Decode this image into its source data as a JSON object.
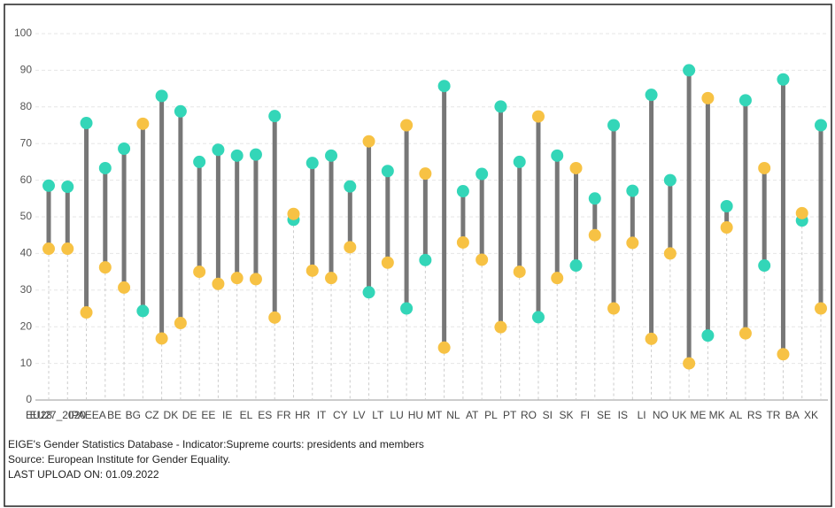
{
  "chart_data": {
    "type": "dumbbell",
    "categories": [
      "EU28",
      "EU27_2020",
      "IPA",
      "EEA",
      "BE",
      "BG",
      "CZ",
      "DK",
      "DE",
      "EE",
      "IE",
      "EL",
      "ES",
      "FR",
      "HR",
      "IT",
      "CY",
      "LV",
      "LT",
      "LU",
      "HU",
      "MT",
      "NL",
      "AT",
      "PL",
      "PT",
      "RO",
      "SI",
      "SK",
      "FI",
      "SE",
      "IS",
      "LI",
      "NO",
      "UK",
      "ME",
      "MK",
      "AL",
      "RS",
      "TR",
      "BA",
      "XK"
    ],
    "series": [
      {
        "color": "#33d6b8",
        "values": [
          58.5,
          58.2,
          75.6,
          63.3,
          68.6,
          24.3,
          83,
          78.8,
          65,
          68.3,
          66.7,
          67,
          77.5,
          49.2,
          64.7,
          66.7,
          58.3,
          29.4,
          62.5,
          25,
          38.2,
          85.7,
          57,
          61.7,
          80.1,
          65,
          22.6,
          66.7,
          36.7,
          55,
          75,
          57.1,
          83.3,
          60,
          90,
          17.6,
          52.9,
          81.8,
          36.7,
          87.5,
          49,
          75
        ]
      },
      {
        "color": "#f7c244",
        "values": [
          41.3,
          41.3,
          23.9,
          36.2,
          30.7,
          75.4,
          16.8,
          21,
          35,
          31.7,
          33.3,
          33,
          22.5,
          50.8,
          35.3,
          33.3,
          41.7,
          70.6,
          37.5,
          75,
          61.8,
          14.3,
          43,
          38.3,
          19.9,
          35,
          77.4,
          33.3,
          63.3,
          45,
          25,
          42.9,
          16.7,
          40,
          10,
          82.4,
          47.1,
          18.2,
          63.3,
          12.5,
          51,
          25
        ]
      }
    ],
    "ylim": [
      0,
      100
    ],
    "yticks": [
      0,
      10,
      20,
      30,
      40,
      50,
      60,
      70,
      80,
      90,
      100
    ],
    "grid": true,
    "notes": [
      "EIGE's Gender Statistics Database - Indicator:Supreme courts: presidents and members",
      "Source: European Institute for Gender Equality.",
      "LAST UPLOAD ON: 01.09.2022"
    ]
  }
}
